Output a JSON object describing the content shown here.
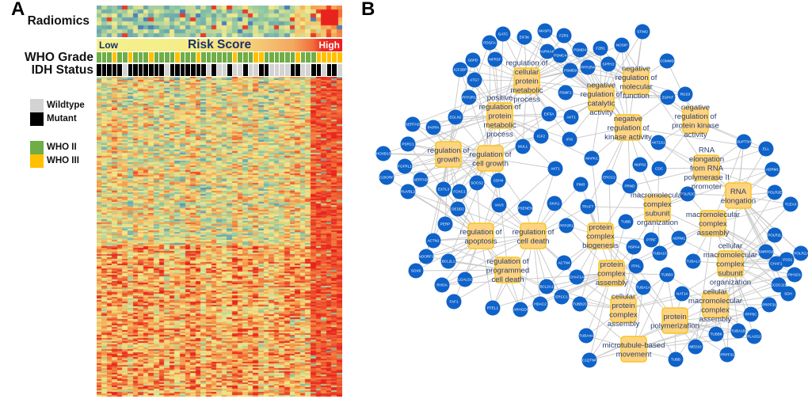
{
  "panel_a": {
    "letter": "A",
    "labels": {
      "radiomics": "Radiomics",
      "who_grade": "WHO Grade",
      "idh_status": "IDH Status"
    },
    "risk_score": {
      "low": "Low",
      "title": "Risk Score",
      "high": "High"
    },
    "legend": {
      "wildtype": {
        "label": "Wildtype",
        "color": "#d3d3d3"
      },
      "mutant": {
        "label": "Mutant",
        "color": "#000000"
      },
      "who2": {
        "label": "WHO II",
        "color": "#70ad47"
      },
      "who3": {
        "label": "WHO III",
        "color": "#ffc000"
      }
    },
    "who_grade": [
      "II",
      "II",
      "II",
      "III",
      "II",
      "II",
      "III",
      "II",
      "II",
      "II",
      "III",
      "II",
      "II",
      "II",
      "II",
      "III",
      "II",
      "II",
      "II",
      "III",
      "II",
      "II",
      "II",
      "II",
      "II",
      "II",
      "III",
      "II",
      "II",
      "II",
      "III",
      "III",
      "II",
      "II",
      "II",
      "II",
      "II",
      "II",
      "III",
      "II",
      "II",
      "II",
      "III",
      "III",
      "III",
      "III",
      "III"
    ],
    "idh_status": [
      "M",
      "M",
      "M",
      "M",
      "M",
      "W",
      "M",
      "M",
      "M",
      "M",
      "M",
      "M",
      "M",
      "W",
      "M",
      "M",
      "M",
      "M",
      "M",
      "M",
      "M",
      "W",
      "M",
      "W",
      "W",
      "M",
      "W",
      "W",
      "M",
      "W",
      "W",
      "M",
      "M",
      "W",
      "W",
      "W",
      "W",
      "M",
      "M",
      "W",
      "W",
      "M",
      "M",
      "W",
      "M",
      "M",
      "W"
    ],
    "colormap": [
      "#3a6fc4",
      "#86c3a4",
      "#f2e98c",
      "#f59a4a",
      "#e8231e"
    ]
  },
  "panel_b": {
    "letter": "B",
    "term_color": "#ffd480",
    "term_border": "#f7c520",
    "gene_color": "#0f62c8",
    "terms": [
      {
        "lines": [
          "regulation of",
          "cellular",
          "protein",
          "metabolic",
          "process"
        ]
      },
      {
        "lines": [
          "positive",
          "regulation of",
          "protein",
          "metabolic",
          "process"
        ]
      },
      {
        "lines": [
          "negative",
          "regulation of",
          "catalytic",
          "activity"
        ]
      },
      {
        "lines": [
          "negative",
          "regulation of",
          "molecular",
          "function"
        ]
      },
      {
        "lines": [
          "negative",
          "regulation of",
          "kinase activity"
        ]
      },
      {
        "lines": [
          "negative",
          "regulation of",
          "protein kinase",
          "activity"
        ]
      },
      {
        "lines": [
          "regulation of",
          "growth"
        ]
      },
      {
        "lines": [
          "regulation of",
          "cell growth"
        ]
      },
      {
        "lines": [
          "RNA",
          "elongation",
          "from RNA",
          "polymerase II",
          "promoter"
        ]
      },
      {
        "lines": [
          "RNA",
          "elongation"
        ]
      },
      {
        "lines": [
          "macromolecular",
          "complex",
          "subunit",
          "organization"
        ]
      },
      {
        "lines": [
          "macromolecular",
          "complex",
          "assembly"
        ]
      },
      {
        "lines": [
          "protein",
          "complex",
          "biogenesis"
        ]
      },
      {
        "lines": [
          "regulation of",
          "apoptosis"
        ]
      },
      {
        "lines": [
          "regulation of",
          "cell death"
        ]
      },
      {
        "lines": [
          "regulation of",
          "programmed",
          "cell death"
        ]
      },
      {
        "lines": [
          "protein",
          "complex",
          "assembly"
        ]
      },
      {
        "lines": [
          "cellular",
          "macromolecular",
          "complex",
          "subunit",
          "organization"
        ]
      },
      {
        "lines": [
          "cellular",
          "protein",
          "complex",
          "assembly"
        ]
      },
      {
        "lines": [
          "protein",
          "polymerization"
        ]
      },
      {
        "lines": [
          "cellular",
          "macromolecular",
          "complex",
          "assembly"
        ]
      },
      {
        "lines": [
          "microtubule-based",
          "movement"
        ]
      }
    ],
    "genes": [
      "GATC",
      "EIF3K",
      "MASP1",
      "FZR1",
      "PDGFA",
      "G6PD",
      "NFRSF",
      "AURKAIP",
      "PSMC4",
      "PSMD4",
      "IGF2BP",
      "ATG7",
      "PSMD9",
      "PPP2R4",
      "PPP2R1",
      "PSMF1",
      "EIF5A",
      "AKT1",
      "EGLN2",
      "SERTAD",
      "PAPPA",
      "IGF2",
      "IFI6",
      "PSRC1",
      "STIM2",
      "FZR1",
      "NOSIP",
      "COMMD",
      "SPRY2",
      "ZGPAT",
      "RGS3",
      "AKT1S1",
      "SUPT5H",
      "ELL",
      "MAPK1",
      "NUP62",
      "CDC",
      "ADRM1",
      "HOXB13",
      "FGFRL1",
      "C20ORF",
      "SERTAD",
      "RUVBL2",
      "EXTL3",
      "FOXC1",
      "SOCS2",
      "CDH4",
      "MUL1",
      "AKT1",
      "PIM3",
      "DEDD2",
      "VAV3",
      "PSENEN",
      "SIVA1",
      "TRAFT",
      "PERP",
      "PPP2R1",
      "ACTN1",
      "ERCC2",
      "PRND",
      "POLR2C",
      "POLR2E",
      "TCEA3",
      "TUBB",
      "PTRF",
      "ADRM1",
      "HSPA4",
      "POLR2L",
      "TUBA1C",
      "SNRPD2",
      "AP2S1",
      "POLR2J",
      "CHAF1",
      "PIH1D1",
      "PFKL",
      "TUBAL3",
      "TUBB3",
      "CCDC115",
      "TUBA1A",
      "NOORF1",
      "BCL2L1",
      "SOX9",
      "RHOA",
      "LGALS1",
      "FAF1",
      "ACTN4",
      "CHAF1A",
      "BCL2A1",
      "ERCC1",
      "HDAC2",
      "ARHGDI",
      "RTEL1",
      "TUBB2C",
      "TUBA4A",
      "C1QTNF",
      "NAT14",
      "SDH",
      "PRPF31",
      "PPP5C",
      "TUBB6",
      "TUBA1B",
      "PLA2G2",
      "MED16",
      "PRPF31",
      "TUBB"
    ]
  }
}
